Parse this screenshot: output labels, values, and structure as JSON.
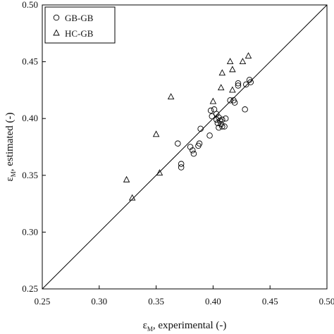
{
  "chart_data": {
    "type": "scatter",
    "xlabel": {
      "symbol": "ε",
      "subscript": "M",
      "text": ", experimental (-)"
    },
    "ylabel": {
      "symbol": "ε",
      "subscript": "M",
      "text": ", estimated (-)"
    },
    "xlim": [
      0.25,
      0.5
    ],
    "ylim": [
      0.25,
      0.5
    ],
    "xticks": [
      0.25,
      {
        "value": 0.3,
        "label": "0.30"
      },
      0.35,
      {
        "value": 0.4,
        "label": "0.40"
      },
      0.45,
      {
        "value": 0.5,
        "label": "0.50"
      }
    ],
    "yticks": [
      0.25,
      {
        "value": 0.3,
        "label": "0.30"
      },
      0.35,
      {
        "value": 0.4,
        "label": "0.40"
      },
      0.45,
      {
        "value": 0.5,
        "label": "0.50"
      }
    ],
    "diagonal": true,
    "legend": "upper left",
    "grid": false,
    "series": [
      {
        "name": "GB-GB",
        "color": "#000000",
        "marker": "circle",
        "x": [
          0.369,
          0.372,
          0.372,
          0.38,
          0.382,
          0.383,
          0.387,
          0.388,
          0.389,
          0.397,
          0.398,
          0.399,
          0.401,
          0.403,
          0.403,
          0.404,
          0.405,
          0.405,
          0.406,
          0.407,
          0.408,
          0.408,
          0.41,
          0.411,
          0.415,
          0.418,
          0.419,
          0.422,
          0.422,
          0.428,
          0.429,
          0.432,
          0.433
        ],
        "values": [
          0.378,
          0.36,
          0.357,
          0.375,
          0.372,
          0.369,
          0.376,
          0.378,
          0.391,
          0.385,
          0.407,
          0.402,
          0.408,
          0.404,
          0.399,
          0.396,
          0.392,
          0.401,
          0.398,
          0.395,
          0.399,
          0.393,
          0.393,
          0.4,
          0.416,
          0.416,
          0.414,
          0.431,
          0.429,
          0.408,
          0.43,
          0.434,
          0.432
        ]
      },
      {
        "name": "HC-GB",
        "color": "#000000",
        "marker": "triangle",
        "x": [
          0.324,
          0.329,
          0.35,
          0.353,
          0.363,
          0.4,
          0.407,
          0.408,
          0.415,
          0.417,
          0.417,
          0.426,
          0.431
        ],
        "values": [
          0.346,
          0.33,
          0.386,
          0.352,
          0.419,
          0.415,
          0.427,
          0.44,
          0.45,
          0.425,
          0.443,
          0.45,
          0.455
        ]
      }
    ]
  }
}
